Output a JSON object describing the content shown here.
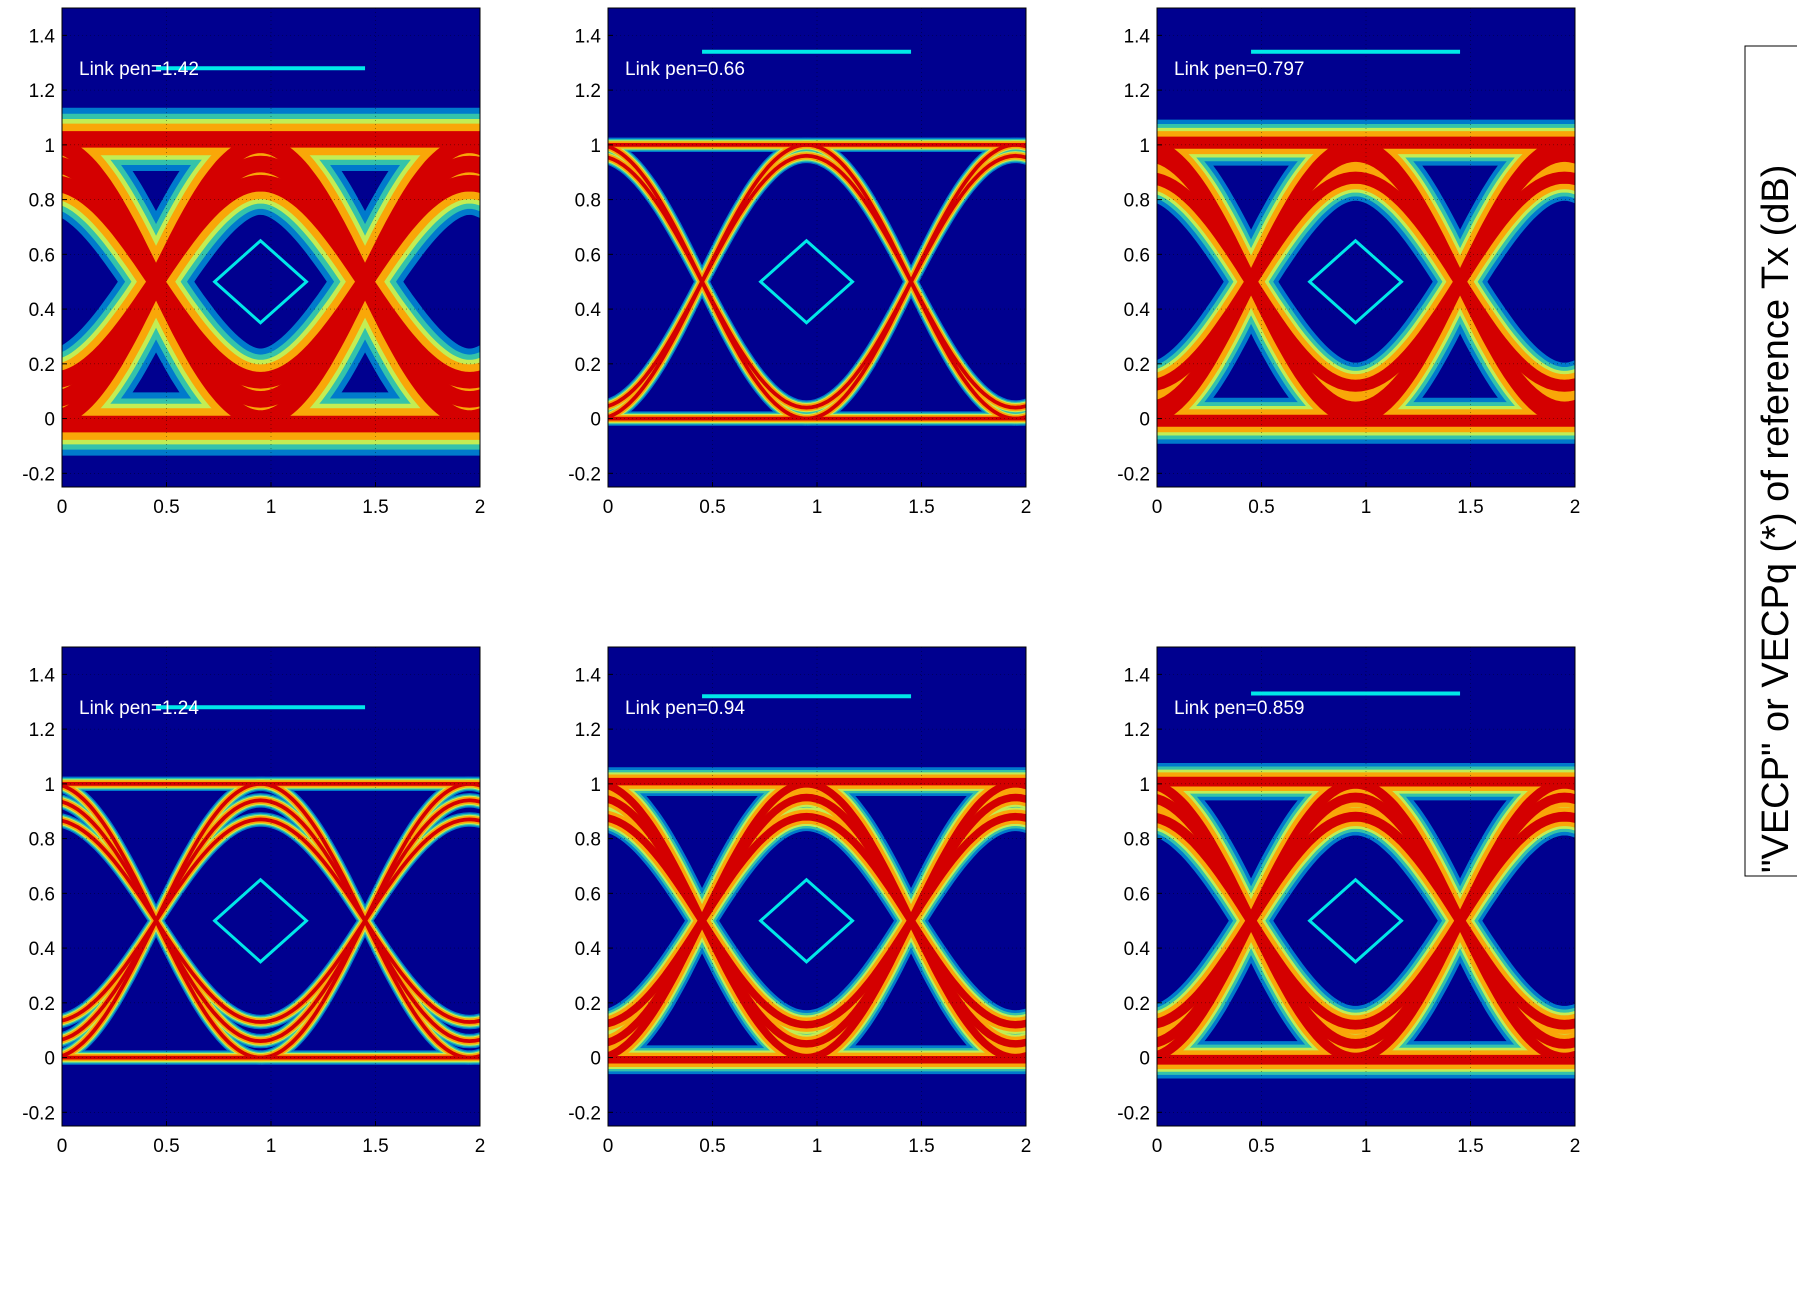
{
  "colors": {
    "background_plot": "#00008f",
    "trace_core": "#d40000",
    "trace_mid": "#ffa000",
    "trace_edge": "#00dfff",
    "mask": "#00e8e8",
    "text_on_plot": "#ffffff",
    "axis_text": "#000000"
  },
  "side_label": {
    "text": "\"VECP\" or VECPq (*) of reference Tx (dB)"
  },
  "chart_data": [
    {
      "type": "heatmap",
      "title": "",
      "xlabel": "",
      "ylabel": "",
      "xlim": [
        0,
        2
      ],
      "ylim": [
        -0.25,
        1.5
      ],
      "x_ticks": [
        "0",
        "0.5",
        "1",
        "1.5",
        "2"
      ],
      "y_ticks": [
        "-0.2",
        "0",
        "0.2",
        "0.4",
        "0.6",
        "0.8",
        "1",
        "1.2",
        "1.4"
      ],
      "grid": true,
      "annotation": "Link pen=1.42",
      "eye": {
        "level_high": 1.0,
        "level_low": 0.0,
        "crossings": [
          0.45,
          1.45
        ],
        "crossing_level": 0.5,
        "trace_width": 0.11,
        "levels": [
          0.0,
          0.07,
          0.14,
          0.86,
          0.93,
          1.0
        ],
        "overshoot": 0.05
      },
      "mask_diamond": {
        "center_x": 0.95,
        "center_y": 0.5,
        "half_width": 0.22,
        "half_height": 0.15
      },
      "reference_line": {
        "x": [
          0.45,
          1.45
        ],
        "y": 1.28
      }
    },
    {
      "type": "heatmap",
      "title": "",
      "xlabel": "",
      "ylabel": "",
      "xlim": [
        0,
        2
      ],
      "ylim": [
        -0.25,
        1.5
      ],
      "x_ticks": [
        "0",
        "0.5",
        "1",
        "1.5",
        "2"
      ],
      "y_ticks": [
        "-0.2",
        "0",
        "0.2",
        "0.4",
        "0.6",
        "0.8",
        "1",
        "1.2",
        "1.4"
      ],
      "grid": true,
      "annotation": "Link pen=0.66",
      "eye": {
        "level_high": 1.0,
        "level_low": 0.0,
        "crossings": [
          0.45,
          1.45
        ],
        "crossing_level": 0.5,
        "trace_width": 0.025,
        "levels": [
          0.0,
          0.04,
          0.96,
          1.0
        ],
        "overshoot": 0.0
      },
      "mask_diamond": {
        "center_x": 0.95,
        "center_y": 0.5,
        "half_width": 0.22,
        "half_height": 0.15
      },
      "reference_line": {
        "x": [
          0.45,
          1.45
        ],
        "y": 1.34
      }
    },
    {
      "type": "heatmap",
      "title": "",
      "xlabel": "",
      "ylabel": "",
      "xlim": [
        0,
        2
      ],
      "ylim": [
        -0.25,
        1.5
      ],
      "x_ticks": [
        "0",
        "0.5",
        "1",
        "1.5",
        "2"
      ],
      "y_ticks": [
        "-0.2",
        "0",
        "0.2",
        "0.4",
        "0.6",
        "0.8",
        "1",
        "1.2",
        "1.4"
      ],
      "grid": true,
      "annotation": "Link pen=0.797",
      "eye": {
        "level_high": 1.0,
        "level_low": 0.0,
        "crossings": [
          0.45,
          1.45
        ],
        "crossing_level": 0.5,
        "trace_width": 0.08,
        "levels": [
          0.0,
          0.04,
          0.12,
          0.88,
          0.96,
          1.0
        ],
        "overshoot": 0.02
      },
      "mask_diamond": {
        "center_x": 0.95,
        "center_y": 0.5,
        "half_width": 0.22,
        "half_height": 0.15
      },
      "reference_line": {
        "x": [
          0.45,
          1.45
        ],
        "y": 1.34
      }
    },
    {
      "type": "heatmap",
      "title": "",
      "xlabel": "",
      "ylabel": "",
      "xlim": [
        0,
        2
      ],
      "ylim": [
        -0.25,
        1.5
      ],
      "x_ticks": [
        "0",
        "0.5",
        "1",
        "1.5",
        "2"
      ],
      "y_ticks": [
        "-0.2",
        "0",
        "0.2",
        "0.4",
        "0.6",
        "0.8",
        "1",
        "1.2",
        "1.4"
      ],
      "grid": true,
      "annotation": "Link pen=1.24",
      "eye": {
        "level_high": 1.0,
        "level_low": 0.0,
        "crossings": [
          0.45,
          1.45
        ],
        "crossing_level": 0.5,
        "trace_width": 0.025,
        "levels": [
          0.0,
          0.06,
          0.13,
          0.87,
          0.94,
          1.0
        ],
        "overshoot": 0.0
      },
      "mask_diamond": {
        "center_x": 0.95,
        "center_y": 0.5,
        "half_width": 0.22,
        "half_height": 0.15
      },
      "reference_line": {
        "x": [
          0.45,
          1.45
        ],
        "y": 1.28
      }
    },
    {
      "type": "heatmap",
      "title": "",
      "xlabel": "",
      "ylabel": "",
      "xlim": [
        0,
        2
      ],
      "ylim": [
        -0.25,
        1.5
      ],
      "x_ticks": [
        "0",
        "0.5",
        "1",
        "1.5",
        "2"
      ],
      "y_ticks": [
        "-0.2",
        "0",
        "0.2",
        "0.4",
        "0.6",
        "0.8",
        "1",
        "1.2",
        "1.4"
      ],
      "grid": true,
      "annotation": "Link pen=0.94",
      "eye": {
        "level_high": 1.0,
        "level_low": 0.0,
        "crossings": [
          0.45,
          1.45
        ],
        "crossing_level": 0.5,
        "trace_width": 0.05,
        "levels": [
          0.0,
          0.05,
          0.12,
          0.88,
          0.95,
          1.0
        ],
        "overshoot": 0.02
      },
      "mask_diamond": {
        "center_x": 0.95,
        "center_y": 0.5,
        "half_width": 0.22,
        "half_height": 0.15
      },
      "reference_line": {
        "x": [
          0.45,
          1.45
        ],
        "y": 1.32
      }
    },
    {
      "type": "heatmap",
      "title": "",
      "xlabel": "",
      "ylabel": "",
      "xlim": [
        0,
        2
      ],
      "ylim": [
        -0.25,
        1.5
      ],
      "x_ticks": [
        "0",
        "0.5",
        "1",
        "1.5",
        "2"
      ],
      "y_ticks": [
        "-0.2",
        "0",
        "0.2",
        "0.4",
        "0.6",
        "0.8",
        "1",
        "1.2",
        "1.4"
      ],
      "grid": true,
      "annotation": "Link pen=0.859",
      "eye": {
        "level_high": 1.0,
        "level_low": 0.0,
        "crossings": [
          0.45,
          1.45
        ],
        "crossing_level": 0.5,
        "trace_width": 0.065,
        "levels": [
          0.0,
          0.05,
          0.12,
          0.88,
          0.95,
          1.0
        ],
        "overshoot": 0.02
      },
      "mask_diamond": {
        "center_x": 0.95,
        "center_y": 0.5,
        "half_width": 0.22,
        "half_height": 0.15
      },
      "reference_line": {
        "x": [
          0.45,
          1.45
        ],
        "y": 1.33
      }
    }
  ]
}
